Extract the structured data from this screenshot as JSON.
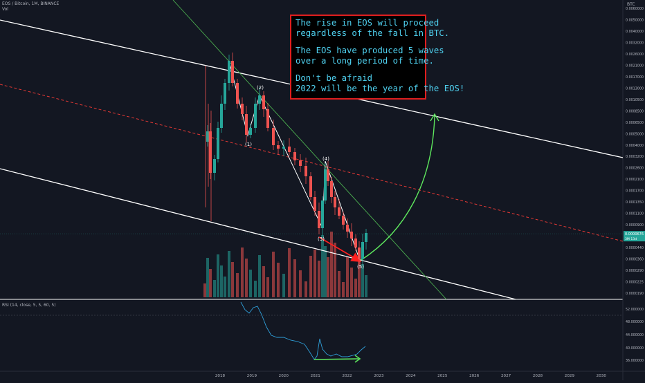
{
  "header": {
    "symbol_line": "EOS / Bitcoin, 1M, BINANCE",
    "volume_label": "Vol",
    "currency": "BTC",
    "rsi_label": "RSI (14, close, 5, 5, 60, 5)"
  },
  "annotation": {
    "lines": [
      "The rise in EOS will proceed",
      "regardless of the fall in BTC.",
      "",
      "The EOS have produced 5 waves",
      "over a long period of time.",
      "",
      "Don't be afraid",
      "2022 will be the year of the EOS!"
    ]
  },
  "wave_labels": [
    "(1)",
    "(2)",
    "(3)",
    "(4)",
    "(5)"
  ],
  "colors": {
    "background": "#131722",
    "bull": "#26a69a",
    "bear": "#ef5350",
    "channel": "#ffffff",
    "midline": "#e53935",
    "trendline": "#4caf50",
    "projection": "#5ee85e",
    "rsi": "#2f9fd9",
    "box_border": "#e11e1e",
    "box_text": "#4fd1f0"
  },
  "chart_data": [
    {
      "type": "line",
      "panel": "price",
      "scale": "log",
      "axis_label": "BTC",
      "x_ticks": [
        "2018",
        "2019",
        "2020",
        "2021",
        "2022",
        "2023",
        "2024",
        "2025",
        "2026",
        "2027",
        "2028",
        "2029",
        "2030"
      ],
      "y_ticks": [
        "0.0060000",
        "0.0050000",
        "0.0040000",
        "0.0032000",
        "0.0026000",
        "0.0021000",
        "0.0017000",
        "0.0013000",
        "0.0010500",
        "0.0008500",
        "0.0006500",
        "0.0005000",
        "0.0004000",
        "0.0003200",
        "0.0002600",
        "0.0002100",
        "0.0001700",
        "0.0001350",
        "0.0001100",
        "0.0000900",
        "0.0000560",
        "0.0000440",
        "0.0000360",
        "0.0000290",
        "0.0000225",
        "0.0000190"
      ],
      "current_price_label": "0.0000676",
      "current_price_sub": "3M 13d",
      "wave_points": [
        {
          "label": "(1)",
          "value": 0.00039
        },
        {
          "label": "(2)",
          "value": 0.00105
        },
        {
          "label": "(3)",
          "value": 6.2e-05
        },
        {
          "label": "(4)",
          "value": 0.00021
        },
        {
          "label": "(5)",
          "value": 3.6e-05
        }
      ]
    },
    {
      "type": "line",
      "panel": "rsi",
      "title": "RSI (14, close, 5, 5, 60, 5)",
      "y_ticks": [
        "52.000000",
        "48.000000",
        "44.000000",
        "40.000000",
        "36.000000"
      ],
      "ylim": [
        35,
        53
      ]
    }
  ]
}
